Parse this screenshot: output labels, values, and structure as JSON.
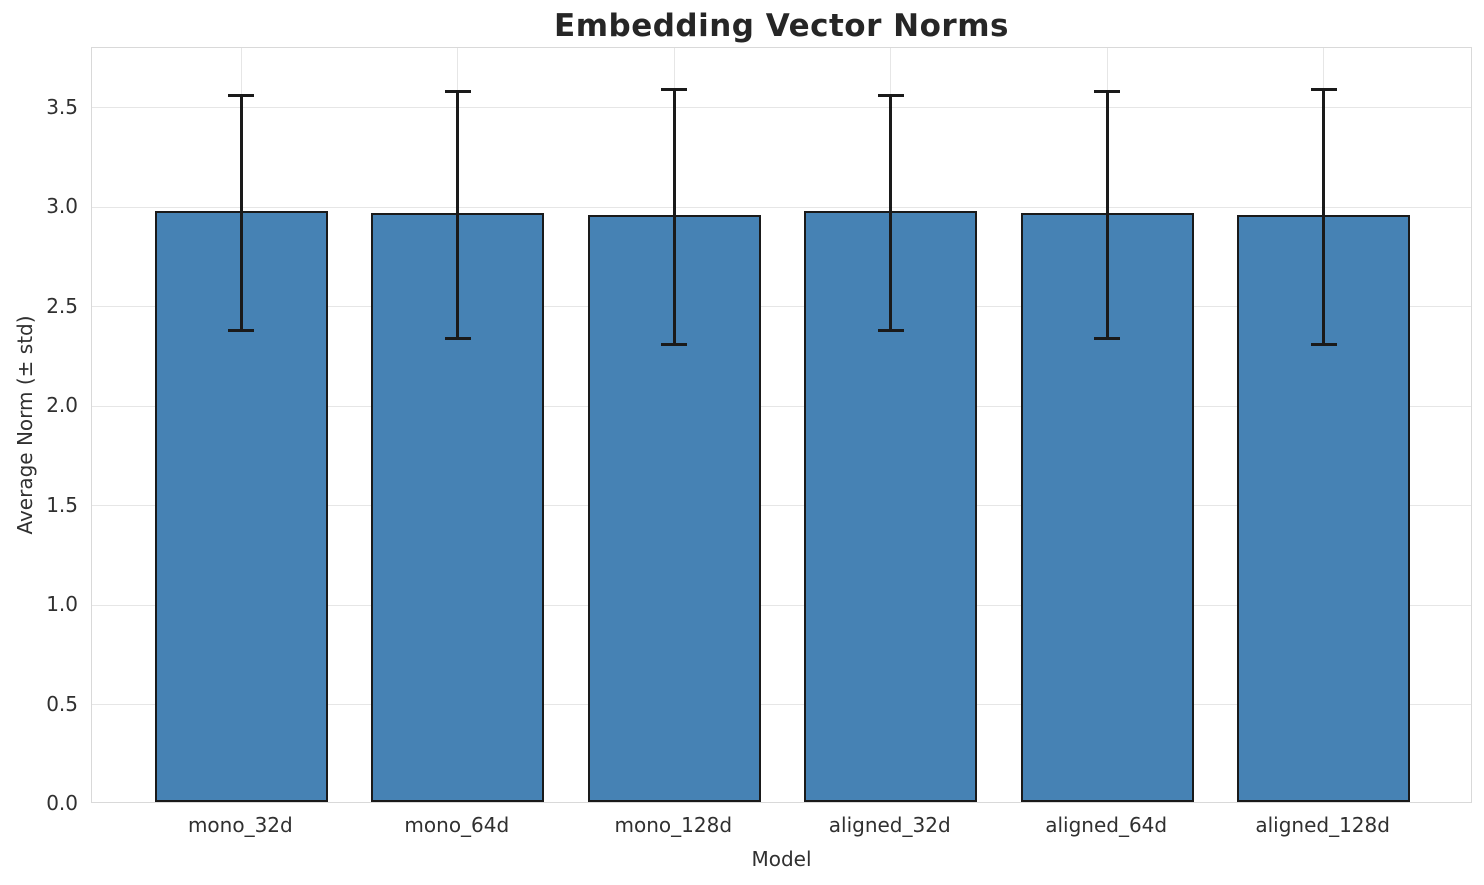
{
  "chart_data": {
    "type": "bar",
    "title": "Embedding Vector Norms",
    "xlabel": "Model",
    "ylabel": "Average Norm (± std)",
    "categories": [
      "mono_32d",
      "mono_64d",
      "mono_128d",
      "aligned_32d",
      "aligned_64d",
      "aligned_128d"
    ],
    "values": [
      2.97,
      2.96,
      2.95,
      2.97,
      2.96,
      2.95
    ],
    "errors": [
      0.59,
      0.62,
      0.64,
      0.59,
      0.62,
      0.64
    ],
    "ylim": [
      0,
      3.8
    ],
    "yticks": [
      0.0,
      0.5,
      1.0,
      1.5,
      2.0,
      2.5,
      3.0,
      3.5
    ],
    "ytick_labels": [
      "0.0",
      "0.5",
      "1.0",
      "1.5",
      "2.0",
      "2.5",
      "3.0",
      "3.5"
    ],
    "grid": true,
    "legend": "none",
    "bar_color": "#4682B4",
    "bar_edge_color": "#1a1a1a",
    "error_color": "#1a1a1a",
    "grid_color": "#e6e6e6",
    "text_color": "#303030",
    "title_color": "#262626",
    "background_color": "#ffffff"
  }
}
